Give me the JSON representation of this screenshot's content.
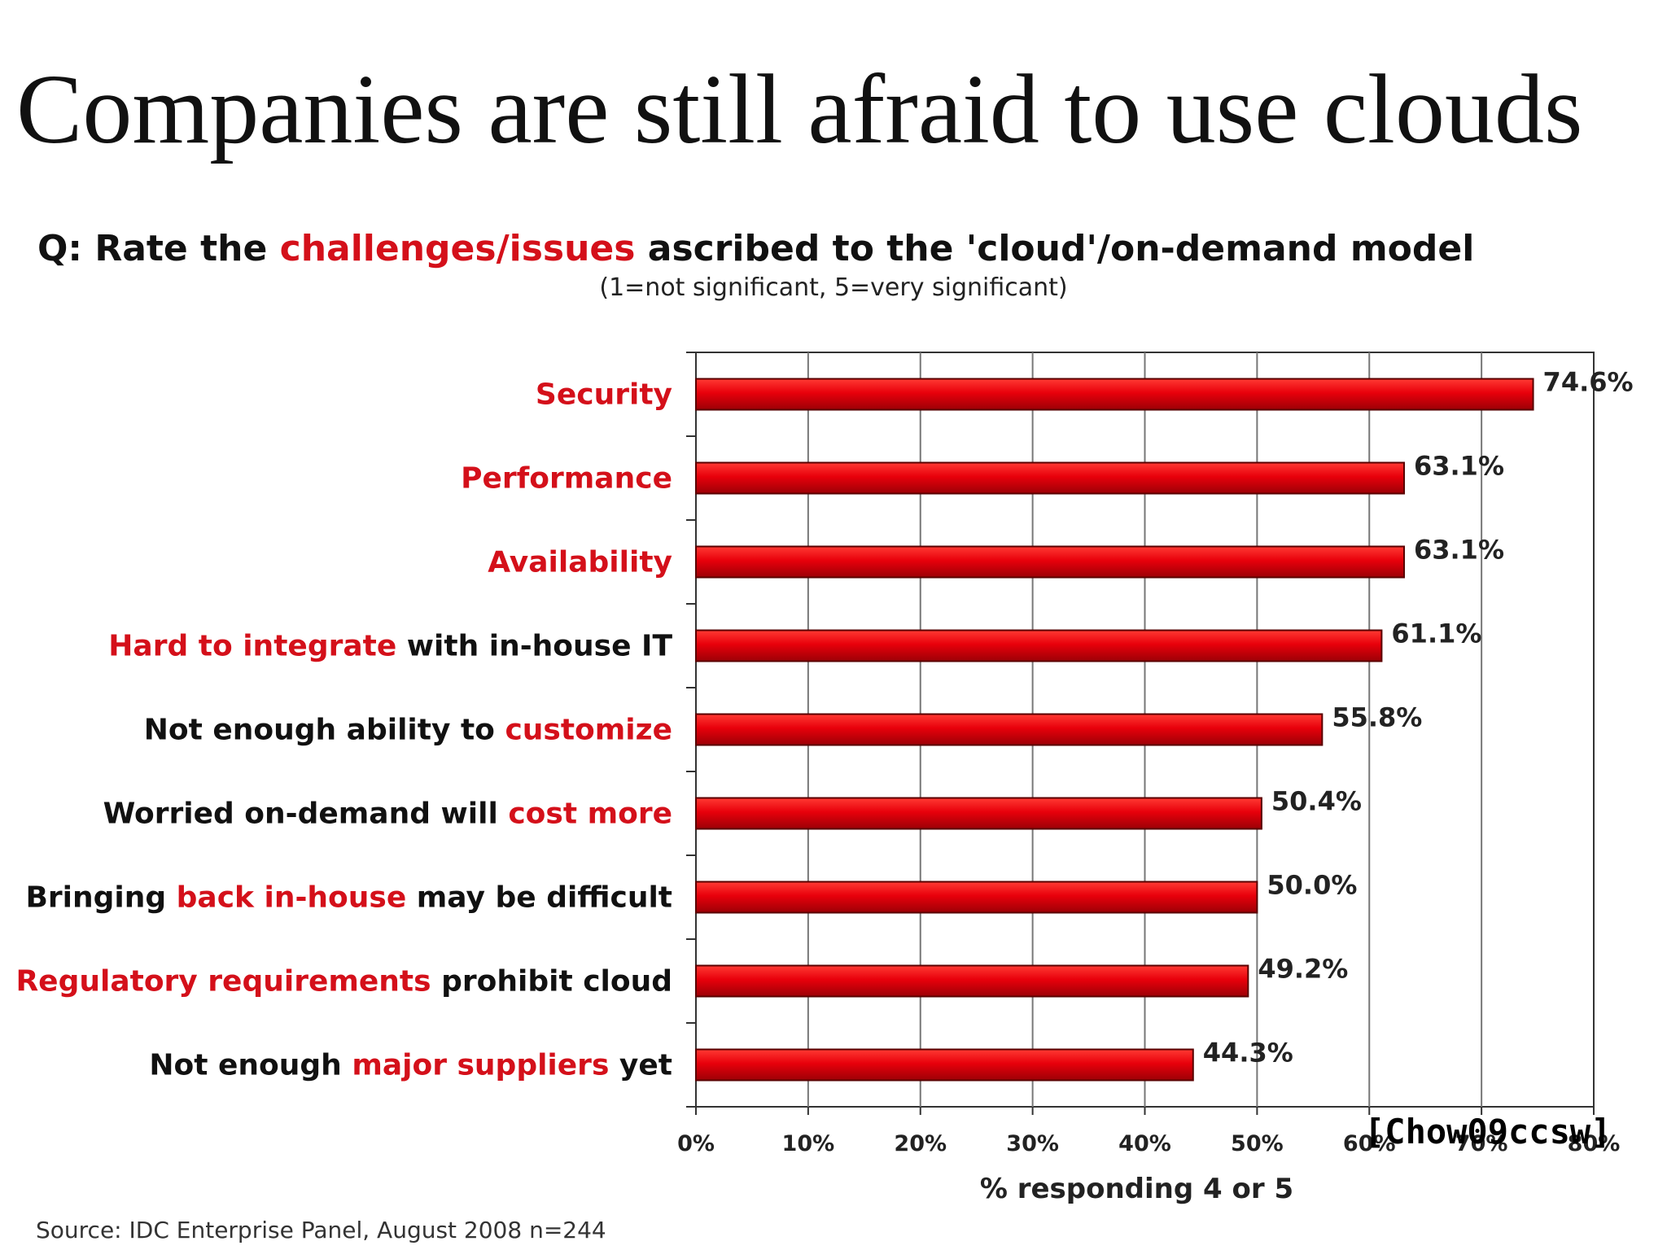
{
  "slide": {
    "title": "Companies are still afraid to use clouds",
    "question_prefix": "Q: Rate the ",
    "question_highlight": "challenges/issues",
    "question_suffix": " ascribed to the 'cloud'/on-demand model",
    "question_note": "(1=not significant, 5=very significant)",
    "citation": "[Chow09ccsw]",
    "source": "Source: IDC Enterprise Panel, August 2008  n=244"
  },
  "colors": {
    "bar": "#e8000b",
    "highlight": "#d4101a",
    "text": "#111111",
    "grid": "#777777"
  },
  "chart_data": {
    "type": "bar",
    "orientation": "horizontal",
    "categories": [
      [
        {
          "t": "Security",
          "hl": true
        }
      ],
      [
        {
          "t": "Performance",
          "hl": true
        }
      ],
      [
        {
          "t": "Availability",
          "hl": true
        }
      ],
      [
        {
          "t": "Hard to integrate",
          "hl": true
        },
        {
          "t": " with in-house IT",
          "hl": false
        }
      ],
      [
        {
          "t": "Not enough ability to ",
          "hl": false
        },
        {
          "t": "customize",
          "hl": true
        }
      ],
      [
        {
          "t": "Worried on-demand will ",
          "hl": false
        },
        {
          "t": "cost more",
          "hl": true
        }
      ],
      [
        {
          "t": "Bringing ",
          "hl": false
        },
        {
          "t": "back in-house",
          "hl": true
        },
        {
          "t": " may be difficult",
          "hl": false
        }
      ],
      [
        {
          "t": "Regulatory requirements",
          "hl": true
        },
        {
          "t": " prohibit cloud",
          "hl": false
        }
      ],
      [
        {
          "t": "Not enough ",
          "hl": false
        },
        {
          "t": "major suppliers",
          "hl": true
        },
        {
          "t": " yet",
          "hl": false
        }
      ]
    ],
    "values": [
      74.6,
      63.1,
      63.1,
      61.1,
      55.8,
      50.4,
      50.0,
      49.2,
      44.3
    ],
    "value_labels": [
      "74.6%",
      "63.1%",
      "63.1%",
      "61.1%",
      "55.8%",
      "50.4%",
      "50.0%",
      "49.2%",
      "44.3%"
    ],
    "xlabel": "% responding 4 or 5",
    "xlim": [
      0,
      80
    ],
    "xticks": [
      "0%",
      "10%",
      "20%",
      "30%",
      "40%",
      "50%",
      "60%",
      "70%",
      "80%"
    ],
    "grid": true
  }
}
